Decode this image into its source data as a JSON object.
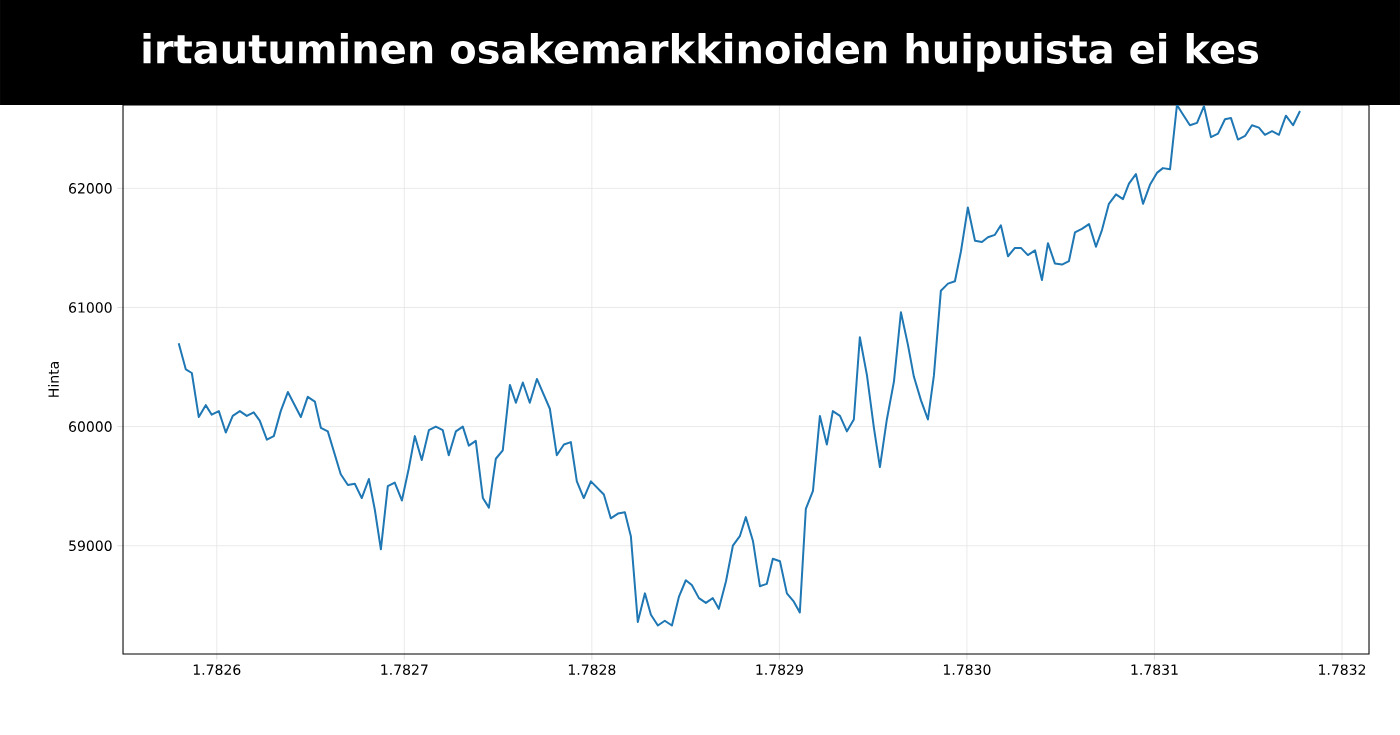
{
  "chart_data": {
    "type": "line",
    "title": "irtautuminen osakemarkkinoiden huipuista ei kes",
    "ylabel": "Hinta",
    "xlim": [
      1.78255,
      1.7832144
    ],
    "ylim": [
      58091,
      62700
    ],
    "xticks": [
      1.7826,
      1.7827,
      1.7828,
      1.7829,
      {
        "value": 1.783,
        "label": "1.7830"
      },
      1.7831,
      1.7832
    ],
    "yticks": [
      59000,
      60000,
      61000,
      62000
    ],
    "grid": true,
    "series": [
      {
        "color": "#1f77b4",
        "x": [
          1.7825797,
          1.7825835,
          1.7825867,
          1.7825904,
          1.7825941,
          1.7825973,
          1.7826011,
          1.7826048,
          1.7826085,
          1.7826123,
          1.782616,
          1.7826197,
          1.7826229,
          1.7826267,
          1.7826304,
          1.7826341,
          1.7826379,
          1.7826448,
          1.7826485,
          1.7826523,
          1.7826555,
          1.7826592,
          1.7826661,
          1.7826699,
          1.7826736,
          1.7826773,
          1.7826811,
          1.7826843,
          1.7826875,
          1.7826912,
          1.7826949,
          1.7826987,
          1.7827024,
          1.7827056,
          1.7827093,
          1.7827131,
          1.7827168,
          1.7827205,
          1.7827237,
          1.7827275,
          1.7827312,
          1.7827344,
          1.7827381,
          1.7827419,
          1.7827451,
          1.7827488,
          1.7827525,
          1.7827563,
          1.7827595,
          1.7827632,
          1.7827669,
          1.7827707,
          1.7827776,
          1.7827813,
          1.7827851,
          1.7827888,
          1.782792,
          1.7827957,
          1.7827995,
          1.7828064,
          1.7828101,
          1.7828139,
          1.7828176,
          1.7828208,
          1.7828245,
          1.7828283,
          1.7828315,
          1.7828352,
          1.7828389,
          1.7828427,
          1.7828464,
          1.7828501,
          1.7828533,
          1.7828571,
          1.7828608,
          1.7828645,
          1.7828677,
          1.7828715,
          1.7828752,
          1.7828789,
          1.7828821,
          1.7828859,
          1.7828896,
          1.7828933,
          1.7828965,
          1.7829003,
          1.782904,
          1.7829077,
          1.7829109,
          1.7829141,
          1.7829179,
          1.7829216,
          1.7829253,
          1.7829285,
          1.7829323,
          1.782936,
          1.7829397,
          1.7829429,
          1.7829467,
          1.7829504,
          1.7829536,
          1.7829573,
          1.7829611,
          1.7829648,
          1.7829685,
          1.7829717,
          1.7829755,
          1.7829792,
          1.7829824,
          1.7829861,
          1.7829899,
          1.7829936,
          1.7829968,
          1.7830005,
          1.7830043,
          1.783008,
          1.7830112,
          1.7830149,
          1.7830181,
          1.7830219,
          1.7830256,
          1.7830288,
          1.7830325,
          1.7830363,
          1.78304,
          1.7830432,
          1.7830469,
          1.7830507,
          1.7830544,
          1.7830576,
          1.7830613,
          1.7830651,
          1.7830688,
          1.783072,
          1.7830757,
          1.7830795,
          1.7830832,
          1.7830864,
          1.7830901,
          1.7830939,
          1.7830976,
          1.7831013,
          1.7831045,
          1.7831083,
          1.783112,
          1.7831152,
          1.7831189,
          1.7831227,
          1.7831264,
          1.7831301,
          1.7831339,
          1.7831376,
          1.7831408,
          1.7831445,
          1.7831483,
          1.783152,
          1.7831557,
          1.7831589,
          1.7831627,
          1.7831664,
          1.7831701,
          1.7831739,
          1.7831776
        ],
        "values": [
          60700,
          60480,
          60450,
          60080,
          60180,
          60100,
          60130,
          59950,
          60090,
          60130,
          60090,
          60120,
          60050,
          59890,
          59920,
          60130,
          60290,
          60080,
          60250,
          60210,
          59990,
          59960,
          59600,
          59510,
          59520,
          59400,
          59560,
          59300,
          58970,
          59500,
          59530,
          59380,
          59650,
          59920,
          59720,
          59970,
          60000,
          59970,
          59760,
          59960,
          60000,
          59840,
          59880,
          59400,
          59320,
          59730,
          59800,
          60350,
          60200,
          60370,
          60200,
          60400,
          60150,
          59760,
          59850,
          59870,
          59540,
          59400,
          59540,
          59430,
          59230,
          59270,
          59280,
          59080,
          58360,
          58600,
          58420,
          58330,
          58370,
          58330,
          58570,
          58710,
          58670,
          58560,
          58520,
          58560,
          58470,
          58700,
          59000,
          59080,
          59240,
          59040,
          58660,
          58680,
          58890,
          58870,
          58600,
          58530,
          58440,
          59310,
          59460,
          60090,
          59850,
          60130,
          60090,
          59960,
          60060,
          60750,
          60430,
          59990,
          59660,
          60060,
          60380,
          60960,
          60690,
          60420,
          60220,
          60060,
          60430,
          61140,
          61200,
          61220,
          61470,
          61840,
          61560,
          61550,
          61590,
          61610,
          61690,
          61430,
          61500,
          61500,
          61440,
          61480,
          61230,
          61540,
          61370,
          61360,
          61390,
          61630,
          61660,
          61700,
          61510,
          61650,
          61870,
          61950,
          61910,
          62040,
          62120,
          61870,
          62030,
          62130,
          62170,
          62160,
          62700,
          62620,
          62530,
          62550,
          62690,
          62430,
          62460,
          62580,
          62590,
          62410,
          62440,
          62530,
          62510,
          62450,
          62480,
          62450,
          62610,
          62530,
          62650
        ]
      }
    ]
  }
}
